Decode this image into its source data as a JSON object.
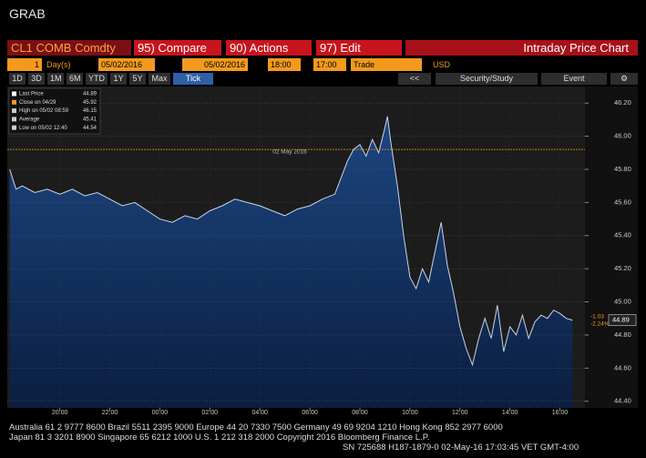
{
  "window_title": "GRAB",
  "toolbar": {
    "security": "CL1 COMB Comdty",
    "buttons": [
      "95) Compare",
      "90) Actions",
      "97) Edit"
    ],
    "panel_title": "Intraday Price Chart"
  },
  "settings": {
    "period": "1",
    "period_unit": "Day(s)",
    "start_date": "05/02/2016",
    "end_date": "05/02/2016",
    "start_time": "18:00",
    "end_time": "17:00",
    "field": "Trade",
    "currency": "USD"
  },
  "ranges": [
    "1D",
    "3D",
    "1M",
    "6M",
    "YTD",
    "1Y",
    "5Y",
    "Max",
    "Tick"
  ],
  "tools": [
    "<<",
    "Security/Study",
    "Event"
  ],
  "footer": [
    "Australia 61 2 9777 8600 Brazil 5511 2395 9000 Europe 44 20 7330 7500 Germany 49 69 9204 1210 Hong Kong 852 2977 6000",
    "Japan 81 3 3201 8900        Singapore 65 6212 1000        U.S. 1 212 318 2000        Copyright 2016 Bloomberg Finance L.P.",
    "SN 725688 H187-1879-0 02-May-16 17:03:45 VET   GMT-4:00"
  ],
  "chart_data": {
    "type": "area",
    "annotation": "02 May 2016",
    "legend": [
      {
        "label": "Last Price",
        "value": 44.89
      },
      {
        "label": "Close on 04/29",
        "value": 45.92
      },
      {
        "label": "High on 05/02 08:59",
        "value": 46.15
      },
      {
        "label": "Average",
        "value": 45.41
      },
      {
        "label": "Low on 05/02 12:40",
        "value": 44.54
      }
    ],
    "change": -1.03,
    "change_pct": "-2.24%",
    "x": [
      0,
      0.25,
      0.5,
      1,
      1.5,
      2,
      2.5,
      3,
      3.5,
      4,
      4.5,
      5,
      5.5,
      6,
      6.5,
      7,
      7.5,
      8,
      8.5,
      9,
      9.5,
      10,
      10.5,
      11,
      11.5,
      12,
      12.5,
      13,
      13.25,
      13.5,
      13.75,
      14,
      14.25,
      14.5,
      14.75,
      15,
      15.1,
      15.25,
      15.5,
      15.75,
      16,
      16.25,
      16.5,
      16.75,
      17,
      17.25,
      17.5,
      17.75,
      18,
      18.25,
      18.5,
      18.75,
      19,
      19.25,
      19.5,
      19.75,
      20,
      20.25,
      20.5,
      20.75,
      21,
      21.25,
      21.5,
      21.75,
      22,
      22.25,
      22.5
    ],
    "series": [
      {
        "name": "Last Price",
        "color": "#c8d4e8",
        "values": [
          45.8,
          45.68,
          45.7,
          45.66,
          45.68,
          45.65,
          45.68,
          45.64,
          45.66,
          45.62,
          45.58,
          45.6,
          45.55,
          45.5,
          45.48,
          45.52,
          45.5,
          45.55,
          45.58,
          45.62,
          45.6,
          45.58,
          45.55,
          45.52,
          45.56,
          45.58,
          45.62,
          45.65,
          45.75,
          45.85,
          45.92,
          45.95,
          45.88,
          45.98,
          45.9,
          46.05,
          46.12,
          45.95,
          45.7,
          45.4,
          45.15,
          45.08,
          45.2,
          45.12,
          45.3,
          45.48,
          45.22,
          45.05,
          44.85,
          44.72,
          44.62,
          44.78,
          44.9,
          44.78,
          44.98,
          44.7,
          44.85,
          44.8,
          44.92,
          44.78,
          44.88,
          44.92,
          44.9,
          44.95,
          44.93,
          44.9,
          44.89
        ]
      }
    ],
    "xlim": [
      -0.1,
      23
    ],
    "xticks": [
      {
        "value": 2,
        "label": "20:00"
      },
      {
        "value": 4,
        "label": "22:00"
      },
      {
        "value": 6,
        "label": "00:00"
      },
      {
        "value": 8,
        "label": "02:00"
      },
      {
        "value": 10,
        "label": "04:00"
      },
      {
        "value": 12,
        "label": "06:00"
      },
      {
        "value": 14,
        "label": "08:00"
      },
      {
        "value": 16,
        "label": "10:00"
      },
      {
        "value": 18,
        "label": "12:00"
      },
      {
        "value": 20,
        "label": "14:00"
      },
      {
        "value": 22,
        "label": "16:00"
      }
    ],
    "ylim": [
      44.36,
      46.3
    ],
    "yticks": [
      {
        "value": 44.4,
        "label": "44.40"
      },
      {
        "value": 44.6,
        "label": "44.60"
      },
      {
        "value": 44.8,
        "label": "44.80"
      },
      {
        "value": 45,
        "label": "45.00"
      },
      {
        "value": 45.2,
        "label": "45.20"
      },
      {
        "value": 45.4,
        "label": "45.40"
      },
      {
        "value": 45.6,
        "label": "45.60"
      },
      {
        "value": 45.8,
        "label": "45.80"
      },
      {
        "value": 46,
        "label": "46.00"
      },
      {
        "value": 46.2,
        "label": "46.20"
      }
    ],
    "grid": true,
    "reference_color": "#f39a1e",
    "area_color": "#123466"
  }
}
